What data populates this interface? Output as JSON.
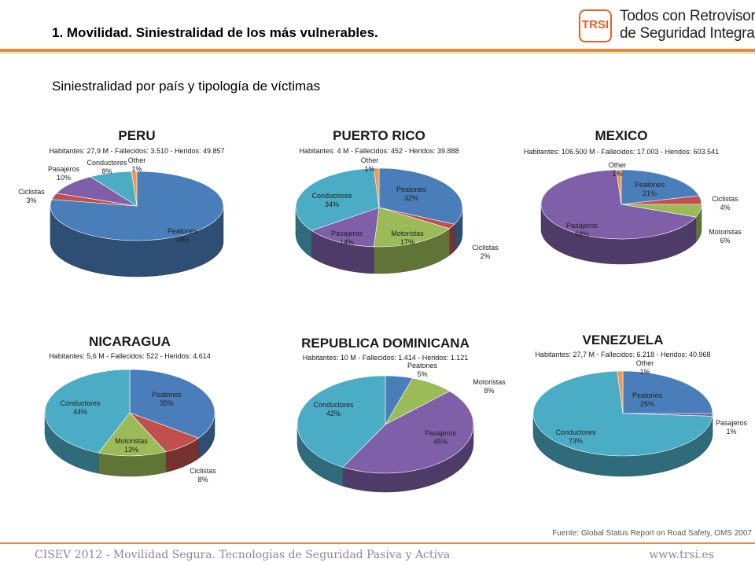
{
  "header": {
    "title": "1.  Movilidad. Siniestralidad de los más vulnerables.",
    "logo_short": "TRSI",
    "logo_line1": "Todos con Retrovisor",
    "logo_line2": "de Seguridad Integrado"
  },
  "subtitle": "Siniestralidad por país y tipología de víctimas",
  "source": "Fuente: Global Status Report on Road Safety, OMS 2007",
  "footer": {
    "left": "CISEV 2012 - Movilidad Segura. Tecnologías de Seguridad Pasiva y Activa",
    "right": "www.trsi.es"
  },
  "colors": {
    "Peatones": "#4a7ebb",
    "Ciclistas": "#c0504d",
    "Motoristas": "#9bbb59",
    "Pasajeros": "#7f5fa8",
    "Conductores": "#4bacc6",
    "Other": "#f79646",
    "accent": "#e88a3c"
  },
  "chart_data": [
    {
      "type": "pie",
      "title": "PERU",
      "stats": "Habitantes: 27,9 M - Fallecidos: 3.510 - Heridos: 49.857",
      "slices": [
        {
          "label": "Peatones",
          "percent": "78%",
          "value": 78
        },
        {
          "label": "Ciclistas",
          "percent": "3%",
          "value": 3
        },
        {
          "label": "Pasajeros",
          "percent": "10%",
          "value": 10
        },
        {
          "label": "Conductores",
          "percent": "8%",
          "value": 8
        },
        {
          "label": "Other",
          "percent": "1%",
          "value": 1
        }
      ]
    },
    {
      "type": "pie",
      "title": "PUERTO RICO",
      "stats": "Habitantes: 4 M - Fallecidos: 452 - Heridos: 39.888",
      "slices": [
        {
          "label": "Peatones",
          "percent": "32%",
          "value": 32
        },
        {
          "label": "Ciclistas",
          "percent": "2%",
          "value": 2
        },
        {
          "label": "Motoristas",
          "percent": "17%",
          "value": 17
        },
        {
          "label": "Pasajeros",
          "percent": "14%",
          "value": 14
        },
        {
          "label": "Conductores",
          "percent": "34%",
          "value": 34
        },
        {
          "label": "Other",
          "percent": "1%",
          "value": 1
        }
      ]
    },
    {
      "type": "pie",
      "title": "MEXICO",
      "stats": "Habitantes: 106.500 M - Fallecidos: 17.003 - Heridos: 603.541",
      "slices": [
        {
          "label": "Peatones",
          "percent": "21%",
          "value": 21
        },
        {
          "label": "Ciclistas",
          "percent": "4%",
          "value": 4
        },
        {
          "label": "Motoristas",
          "percent": "6%",
          "value": 6
        },
        {
          "label": "Pasajeros",
          "percent": "68%",
          "value": 68
        },
        {
          "label": "Other",
          "percent": "1%",
          "value": 1
        }
      ]
    },
    {
      "type": "pie",
      "title": "NICARAGUA",
      "stats": "Habitantes: 5,6 M - Fallecidos: 522 - Heridos: 4.614",
      "slices": [
        {
          "label": "Peatones",
          "percent": "35%",
          "value": 35
        },
        {
          "label": "Ciclistas",
          "percent": "8%",
          "value": 8
        },
        {
          "label": "Motoristas",
          "percent": "13%",
          "value": 13
        },
        {
          "label": "Conductores",
          "percent": "44%",
          "value": 44
        }
      ]
    },
    {
      "type": "pie",
      "title": "REPUBLICA DOMINICANA",
      "stats": "Habitantes: 10 M - Fallecidos: 1.414 - Heridos: 1.121",
      "slices": [
        {
          "label": "Peatones",
          "percent": "5%",
          "value": 5
        },
        {
          "label": "Motoristas",
          "percent": "8%",
          "value": 8
        },
        {
          "label": "Pasajeros",
          "percent": "45%",
          "value": 45
        },
        {
          "label": "Conductores",
          "percent": "42%",
          "value": 42
        }
      ]
    },
    {
      "type": "pie",
      "title": "VENEZUELA",
      "stats": "Habitantes: 27,7 M - Fallecidos: 6.218 - Heridos: 40.968",
      "slices": [
        {
          "label": "Peatones",
          "percent": "25%",
          "value": 25
        },
        {
          "label": "Pasajeros",
          "percent": "1%",
          "value": 1
        },
        {
          "label": "Conductores",
          "percent": "73%",
          "value": 73
        },
        {
          "label": "Other",
          "percent": "1%",
          "value": 1
        }
      ]
    }
  ]
}
